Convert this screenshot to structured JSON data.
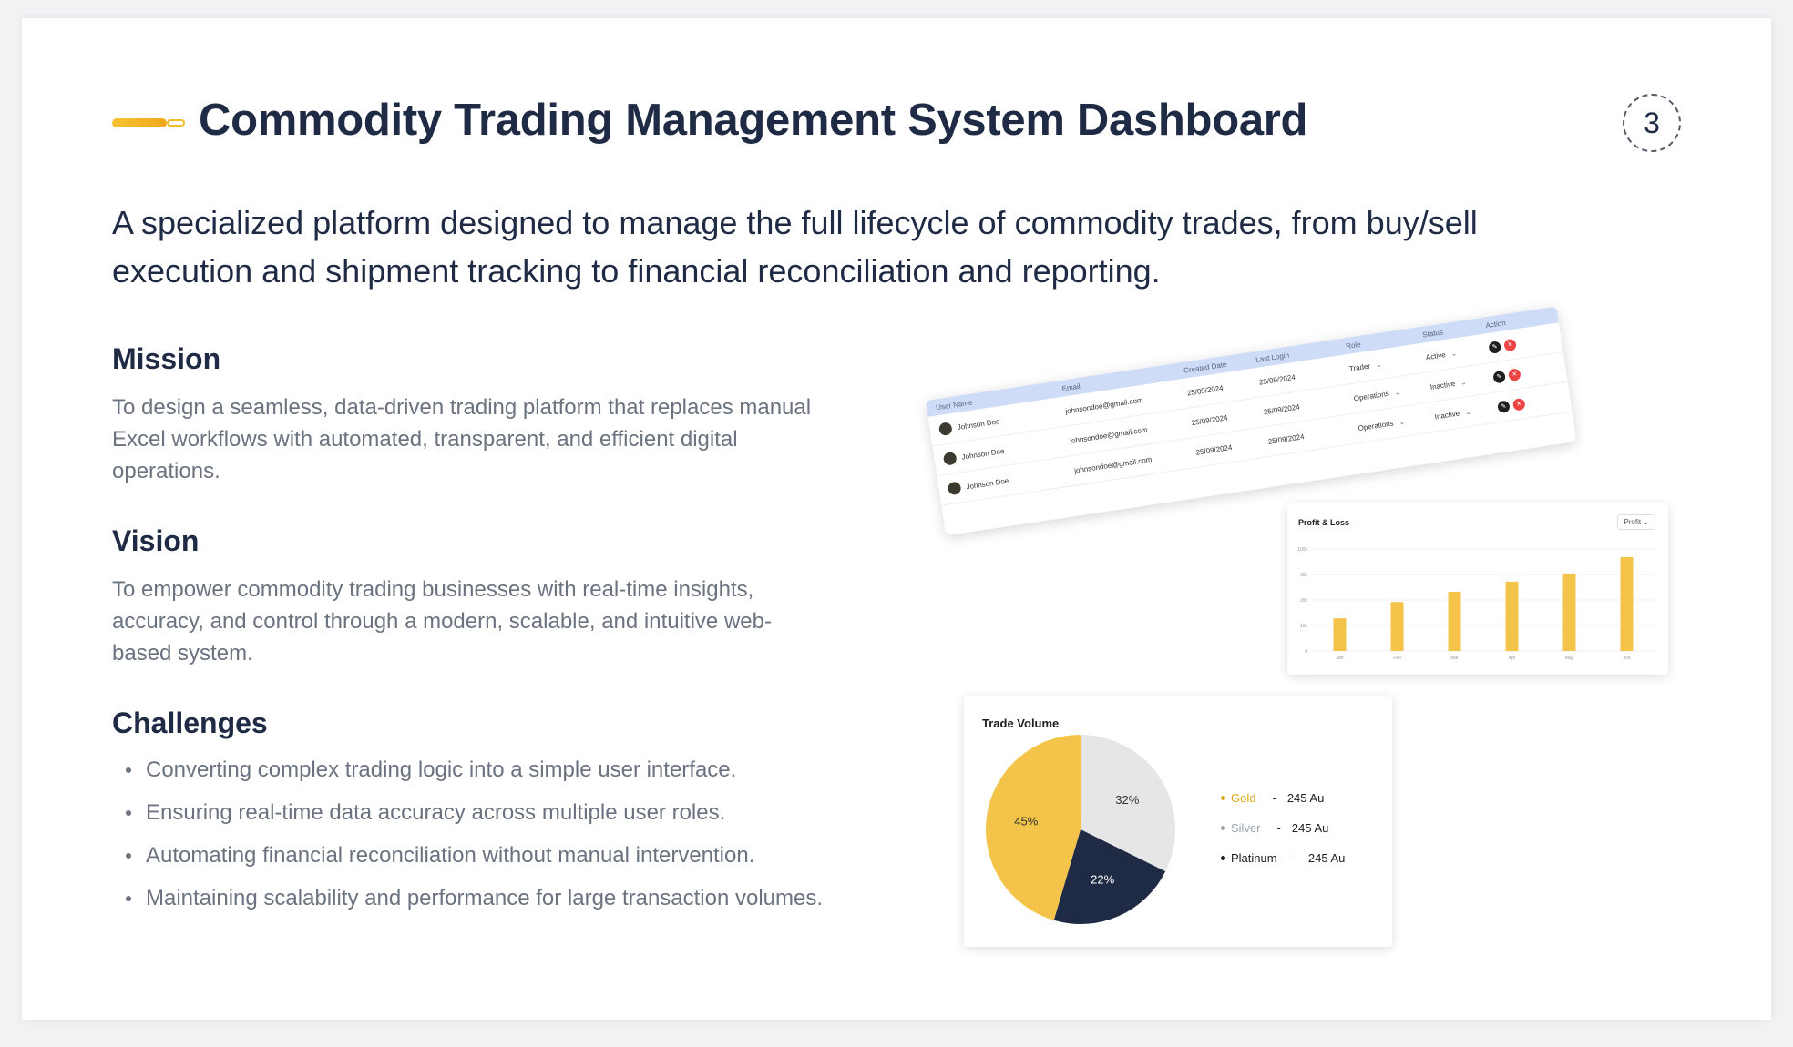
{
  "header": {
    "title": "Commodity Trading Management System Dashboard",
    "page_number": "3",
    "accent_color": "#f4bb2c"
  },
  "intro": "A specialized platform designed to manage the full lifecycle of commodity trades, from buy/sell execution and shipment tracking to financial reconciliation and reporting.",
  "mission": {
    "heading": "Mission",
    "body": "To design a seamless, data-driven trading platform that replaces manual Excel workflows with automated, transparent, and efficient digital operations."
  },
  "vision": {
    "heading": "Vision",
    "body": "To empower commodity trading businesses with real-time insights, accuracy, and control through a modern, scalable, and intuitive web-based system."
  },
  "challenges": {
    "heading": "Challenges",
    "items": [
      "Converting complex trading logic into a simple user interface.",
      "Ensuring real-time data accuracy across multiple user roles.",
      "Automating financial reconciliation without manual intervention.",
      "Maintaining scalability and performance for large transaction volumes."
    ]
  },
  "users_table": {
    "columns": [
      "User Name",
      "Email",
      "Created Date",
      "Last Login",
      "Role",
      "Status",
      "Action"
    ],
    "rows": [
      {
        "name": "Johnson Doe",
        "email": "johnsondoe@gmail.com",
        "created": "25/09/2024",
        "last_login": "25/09/2024",
        "role": "Trader",
        "status": "Active"
      },
      {
        "name": "Johnson Doe",
        "email": "johnsondoe@gmail.com",
        "created": "25/09/2024",
        "last_login": "25/09/2024",
        "role": "Operations",
        "status": "Inactive"
      },
      {
        "name": "Johnson Doe",
        "email": "johnsondoe@gmail.com",
        "created": "25/09/2024",
        "last_login": "25/09/2024",
        "role": "Operations",
        "status": "Inactive"
      }
    ]
  },
  "chart_data": [
    {
      "type": "bar",
      "title": "Profit & Loss",
      "selector": "Profit",
      "categories": [
        "Jan",
        "Feb",
        "Mar",
        "Apr",
        "May",
        "Jun"
      ],
      "values": [
        32,
        48,
        58,
        68,
        76,
        92
      ],
      "ylim": [
        0,
        100
      ],
      "y_ticks": [
        "0",
        "10k",
        "20k",
        "30k",
        "100k"
      ],
      "bar_color": "#f4c34a",
      "grid": true
    },
    {
      "type": "pie",
      "title": "Trade Volume",
      "slices": [
        {
          "label": "Silver",
          "value": 32,
          "display": "32%",
          "color": "#e6e6e6",
          "amount": "245 Au"
        },
        {
          "label": "Platinum",
          "value": 22,
          "display": "22%",
          "color": "#1f2a44",
          "amount": "245 Au"
        },
        {
          "label": "Gold",
          "value": 45,
          "display": "45%",
          "color": "#f4c34a",
          "amount": "245 Au"
        }
      ],
      "legend": [
        {
          "label": "Gold",
          "amount": "245 Au",
          "color": "#e2ad1c"
        },
        {
          "label": "Silver",
          "amount": "245 Au",
          "color": "#9ca3af"
        },
        {
          "label": "Platinum",
          "amount": "245 Au",
          "color": "#1f1f1f"
        }
      ],
      "legend_position": "right"
    }
  ]
}
